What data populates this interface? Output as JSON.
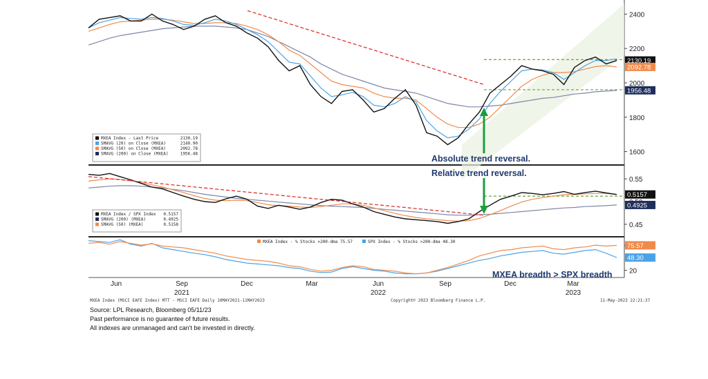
{
  "chart_data": [
    {
      "type": "line",
      "panel": "price",
      "ylim": [
        1550,
        2450
      ],
      "yticks": [
        "2400",
        "2200",
        "2000",
        "1800",
        "1600"
      ],
      "legend": [
        {
          "label": "MXEA Index - Last Price",
          "value": "2130.19",
          "color": "#111111"
        },
        {
          "label": "SMAVG (20) on Close (MXEA)",
          "value": "2140.90",
          "color": "#4aa3e8"
        },
        {
          "label": "SMAVG (50) on Close (MXEA)",
          "value": "2092.78",
          "color": "#f08a4b"
        },
        {
          "label": "SMAVG (200) on Close (MXEA)",
          "value": "1956.48",
          "color": "#1f2f5c"
        }
      ],
      "price_labels": [
        {
          "text": "2130.19",
          "value": 2130.19,
          "color": "#111111"
        },
        {
          "text": "2092.78",
          "value": 2092.78,
          "color": "#f08a4b"
        },
        {
          "text": "1956.48",
          "value": 1956.48,
          "color": "#1f2f5c"
        }
      ],
      "series": [
        {
          "key": "price",
          "color": "#111111",
          "values": [
            2320,
            2370,
            2380,
            2390,
            2360,
            2360,
            2400,
            2360,
            2340,
            2310,
            2330,
            2370,
            2390,
            2350,
            2330,
            2290,
            2260,
            2210,
            2130,
            2070,
            2100,
            1990,
            1920,
            1880,
            1950,
            1960,
            1900,
            1830,
            1850,
            1910,
            1960,
            1870,
            1710,
            1690,
            1640,
            1680,
            1760,
            1830,
            1940,
            1990,
            2040,
            2100,
            2080,
            2070,
            2050,
            1990,
            2090,
            2130,
            2150,
            2110,
            2130
          ]
        },
        {
          "key": "sma20",
          "color": "#4aa3e8",
          "values": [
            2320,
            2350,
            2365,
            2380,
            2375,
            2370,
            2380,
            2375,
            2360,
            2340,
            2335,
            2350,
            2370,
            2360,
            2340,
            2310,
            2280,
            2240,
            2180,
            2120,
            2110,
            2040,
            1970,
            1920,
            1930,
            1945,
            1920,
            1870,
            1860,
            1880,
            1920,
            1890,
            1780,
            1720,
            1680,
            1690,
            1730,
            1790,
            1880,
            1950,
            2010,
            2070,
            2080,
            2075,
            2060,
            2020,
            2060,
            2100,
            2130,
            2130,
            2140
          ]
        },
        {
          "key": "sma50",
          "color": "#f08a4b",
          "values": [
            2300,
            2320,
            2340,
            2355,
            2360,
            2365,
            2370,
            2370,
            2365,
            2355,
            2345,
            2345,
            2350,
            2350,
            2345,
            2330,
            2310,
            2280,
            2240,
            2190,
            2160,
            2110,
            2060,
            2010,
            1990,
            1980,
            1970,
            1940,
            1920,
            1910,
            1910,
            1900,
            1850,
            1800,
            1760,
            1740,
            1740,
            1760,
            1800,
            1860,
            1920,
            1980,
            2020,
            2045,
            2060,
            2060,
            2065,
            2080,
            2095,
            2100,
            2092
          ]
        },
        {
          "key": "sma200",
          "color": "#7d86a8",
          "values": [
            2220,
            2240,
            2260,
            2275,
            2285,
            2295,
            2305,
            2315,
            2320,
            2325,
            2330,
            2330,
            2330,
            2325,
            2320,
            2310,
            2290,
            2270,
            2240,
            2210,
            2180,
            2150,
            2110,
            2080,
            2050,
            2030,
            2010,
            1990,
            1970,
            1960,
            1950,
            1940,
            1920,
            1900,
            1880,
            1870,
            1860,
            1860,
            1865,
            1870,
            1880,
            1890,
            1900,
            1910,
            1915,
            1925,
            1935,
            1940,
            1948,
            1952,
            1956
          ]
        }
      ],
      "trendline": {
        "color": "#e03030",
        "from": 2420,
        "to": 1990
      },
      "support_levels": [
        2135,
        1960
      ],
      "annotations": [
        "Absolute trend reversal."
      ]
    },
    {
      "type": "line",
      "panel": "relative",
      "ylim": [
        0.43,
        0.57
      ],
      "yticks": [
        "0.55",
        "0.50",
        "0.45"
      ],
      "legend": [
        {
          "label": "MXEA Index / SPX Index",
          "value": "0.5157",
          "color": "#111111"
        },
        {
          "label": "SMAVG (200) (MXEA)",
          "value": "0.4925",
          "color": "#1f2f5c"
        },
        {
          "label": "SMAVG (50) (MXEA)",
          "value": "0.5158",
          "color": "#f08a4b"
        }
      ],
      "price_labels": [
        {
          "text": "0.5157",
          "value": 0.5157,
          "color": "#111111"
        },
        {
          "text": "0.4925",
          "value": 0.4925,
          "color": "#1f2f5c"
        }
      ],
      "series": [
        {
          "key": "ratio",
          "color": "#111111",
          "values": [
            0.56,
            0.558,
            0.562,
            0.555,
            0.548,
            0.54,
            0.532,
            0.528,
            0.52,
            0.512,
            0.505,
            0.5,
            0.498,
            0.506,
            0.512,
            0.505,
            0.49,
            0.485,
            0.492,
            0.488,
            0.483,
            0.488,
            0.498,
            0.505,
            0.503,
            0.495,
            0.488,
            0.478,
            0.472,
            0.466,
            0.462,
            0.46,
            0.458,
            0.456,
            0.452,
            0.456,
            0.462,
            0.478,
            0.492,
            0.505,
            0.512,
            0.52,
            0.518,
            0.515,
            0.518,
            0.522,
            0.516,
            0.52,
            0.523,
            0.519,
            0.5157
          ]
        },
        {
          "key": "sma50",
          "color": "#f08a4b",
          "values": [
            0.545,
            0.548,
            0.55,
            0.549,
            0.546,
            0.542,
            0.537,
            0.532,
            0.526,
            0.52,
            0.513,
            0.507,
            0.503,
            0.502,
            0.503,
            0.502,
            0.498,
            0.493,
            0.491,
            0.49,
            0.488,
            0.487,
            0.489,
            0.492,
            0.495,
            0.495,
            0.492,
            0.486,
            0.48,
            0.474,
            0.469,
            0.465,
            0.462,
            0.46,
            0.458,
            0.457,
            0.458,
            0.463,
            0.471,
            0.48,
            0.49,
            0.499,
            0.505,
            0.509,
            0.512,
            0.515,
            0.516,
            0.517,
            0.518,
            0.518,
            0.5158
          ]
        },
        {
          "key": "sma200",
          "color": "#7d86a8",
          "values": [
            0.53,
            0.532,
            0.534,
            0.535,
            0.535,
            0.534,
            0.532,
            0.53,
            0.527,
            0.524,
            0.52,
            0.516,
            0.513,
            0.51,
            0.507,
            0.505,
            0.503,
            0.501,
            0.499,
            0.497,
            0.495,
            0.493,
            0.491,
            0.49,
            0.489,
            0.488,
            0.487,
            0.485,
            0.483,
            0.481,
            0.479,
            0.477,
            0.475,
            0.473,
            0.471,
            0.47,
            0.47,
            0.471,
            0.472,
            0.474,
            0.476,
            0.478,
            0.48,
            0.482,
            0.484,
            0.486,
            0.487,
            0.489,
            0.49,
            0.491,
            0.4925
          ]
        }
      ],
      "trendline": {
        "color": "#e03030",
        "from": 0.555,
        "to": 0.47
      },
      "support_levels": [
        0.512
      ],
      "annotations": [
        "Relative trend reversal."
      ]
    },
    {
      "type": "line",
      "panel": "breadth",
      "ylim": [
        10,
        90
      ],
      "yticks": [
        "75",
        "20"
      ],
      "legend": [
        {
          "label": "MXEA Index - % Stocks >200-dma",
          "value": "75.57",
          "color": "#f08a4b"
        },
        {
          "label": "SPX Index - % Stocks >200-dma",
          "value": "48.30",
          "color": "#4aa3e8"
        }
      ],
      "price_labels": [
        {
          "text": "75.57",
          "value": 75.57,
          "color": "#f08a4b"
        },
        {
          "text": "48.30",
          "value": 48.3,
          "color": "#4aa3e8"
        }
      ],
      "series": [
        {
          "key": "mxea",
          "color": "#f08a4b",
          "values": [
            80,
            82,
            78,
            84,
            80,
            76,
            79,
            74,
            72,
            70,
            66,
            62,
            58,
            52,
            48,
            44,
            42,
            40,
            36,
            30,
            28,
            22,
            18,
            20,
            26,
            30,
            28,
            22,
            20,
            18,
            14,
            12,
            14,
            20,
            26,
            34,
            42,
            52,
            58,
            64,
            66,
            70,
            72,
            74,
            68,
            66,
            70,
            72,
            76,
            74,
            75.57
          ]
        },
        {
          "key": "spx",
          "color": "#4aa3e8",
          "values": [
            86,
            84,
            82,
            88,
            78,
            74,
            80,
            70,
            66,
            62,
            58,
            55,
            50,
            44,
            40,
            36,
            34,
            32,
            30,
            26,
            24,
            18,
            15,
            16,
            24,
            28,
            24,
            20,
            18,
            14,
            12,
            12,
            14,
            18,
            24,
            30,
            36,
            42,
            46,
            52,
            56,
            60,
            62,
            64,
            58,
            56,
            60,
            64,
            66,
            58,
            48.3
          ]
        }
      ],
      "annotations": [
        "MXEA breadth > SPX breadth"
      ]
    }
  ],
  "x_axis": {
    "months": [
      "Jun",
      "Sep",
      "Dec",
      "Mar",
      "Jun",
      "Sep",
      "Dec",
      "Mar"
    ],
    "years": [
      "2021",
      "2022",
      "2023"
    ]
  },
  "footer": {
    "small_left": "MXEA Index (MSCI EAFE Index) MTT - MSCI EAFE Daily 10MAY2021-11MAY2023",
    "small_center": "Copyright© 2023 Bloomberg Finance L.P.",
    "small_right": "11-May-2023 22:21:37",
    "source": "Source: LPL Research, Bloomberg 05/11/23",
    "disclaimer1": "Past performance is no guarantee of future results.",
    "disclaimer2": "All indexes are unmanaged and can't be invested in directly."
  }
}
